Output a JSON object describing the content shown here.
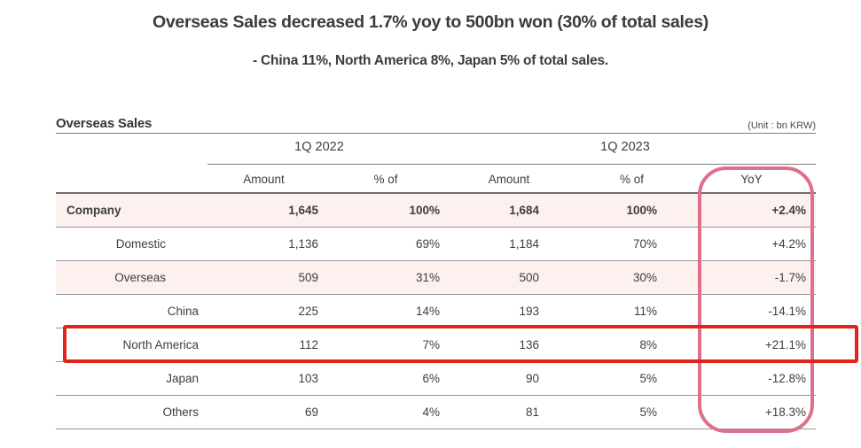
{
  "page": {
    "title": "Overseas Sales decreased 1.7% yoy to 500bn won (30% of total sales)",
    "subtitle": "- China 11%, North America 8%, Japan 5% of total sales."
  },
  "table": {
    "section_title": "Overseas Sales",
    "unit_label": "(Unit : bn KRW)",
    "group_headers": [
      "1Q 2022",
      "1Q 2023"
    ],
    "columns": [
      "Amount",
      "% of",
      "Amount",
      "% of",
      "YoY"
    ],
    "rows": [
      {
        "label": "Company",
        "indent": 0,
        "bold": true,
        "highlight_bg": true,
        "amount_1q2022": "1,645",
        "pct_1q2022": "100%",
        "amount_1q2023": "1,684",
        "pct_1q2023": "100%",
        "yoy": "+2.4%"
      },
      {
        "label": "Domestic",
        "indent": 1,
        "bold": false,
        "highlight_bg": false,
        "amount_1q2022": "1,136",
        "pct_1q2022": "69%",
        "amount_1q2023": "1,184",
        "pct_1q2023": "70%",
        "yoy": "+4.2%"
      },
      {
        "label": "Overseas",
        "indent": 1,
        "bold": false,
        "highlight_bg": true,
        "amount_1q2022": "509",
        "pct_1q2022": "31%",
        "amount_1q2023": "500",
        "pct_1q2023": "30%",
        "yoy": "-1.7%"
      },
      {
        "label": "China",
        "indent": 2,
        "bold": false,
        "highlight_bg": false,
        "amount_1q2022": "225",
        "pct_1q2022": "14%",
        "amount_1q2023": "193",
        "pct_1q2023": "11%",
        "yoy": "-14.1%"
      },
      {
        "label": "North America",
        "indent": 2,
        "bold": false,
        "highlight_bg": false,
        "amount_1q2022": "112",
        "pct_1q2022": "7%",
        "amount_1q2023": "136",
        "pct_1q2023": "8%",
        "yoy": "+21.1%"
      },
      {
        "label": "Japan",
        "indent": 2,
        "bold": false,
        "highlight_bg": false,
        "amount_1q2022": "103",
        "pct_1q2022": "6%",
        "amount_1q2023": "90",
        "pct_1q2023": "5%",
        "yoy": "-12.8%"
      },
      {
        "label": "Others",
        "indent": 2,
        "bold": false,
        "highlight_bg": false,
        "amount_1q2022": "69",
        "pct_1q2022": "4%",
        "amount_1q2023": "81",
        "pct_1q2023": "5%",
        "yoy": "+18.3%"
      }
    ],
    "annotations": {
      "yoy_column_circled": "YoY",
      "yoy_ellipse_color": "#e0708a",
      "boxed_row": "North America",
      "row_box_color": "#e2241a"
    },
    "colors": {
      "highlight_row_bg": "#fcf1ee",
      "text": "#3e3e3e",
      "rule_gray": "#7d7d7d"
    }
  }
}
